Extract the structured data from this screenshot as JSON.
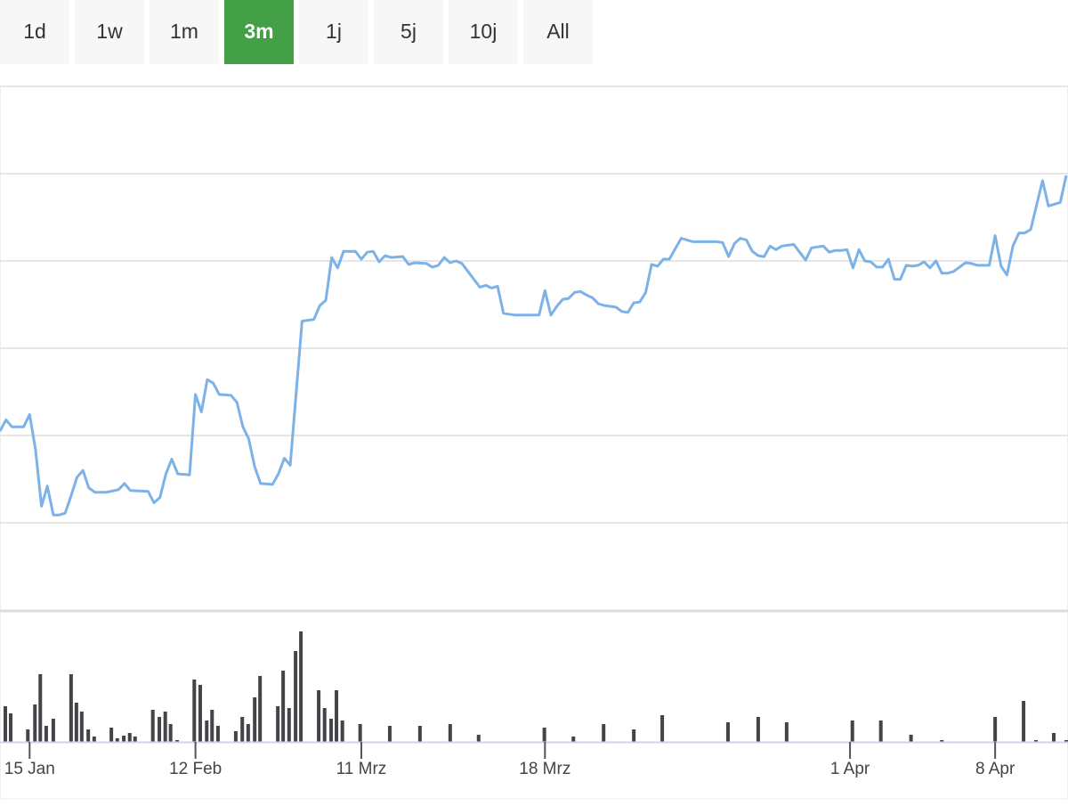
{
  "buttons": {
    "labels": [
      "1d",
      "1w",
      "1m",
      "3m",
      "1j",
      "5j",
      "10j",
      "All"
    ],
    "active": 3
  },
  "chart_data": {
    "type": "line",
    "color": "#7cb2e8",
    "xlim": [
      0,
      180
    ],
    "ylim": [
      0,
      6
    ],
    "yticks": [
      1,
      2,
      3,
      4,
      5,
      6
    ],
    "grid": true,
    "xticks": [
      {
        "value": 5,
        "label": "15 Jan"
      },
      {
        "value": 33,
        "label": "12 Feb"
      },
      {
        "value": 61,
        "label": "11 Mrz"
      },
      {
        "value": 92,
        "label": "18 Mrz"
      },
      {
        "value": 143.5,
        "label": "1 Apr"
      },
      {
        "value": 168,
        "label": "8 Apr"
      }
    ],
    "x": [
      0,
      1,
      2,
      4,
      5,
      6,
      7,
      8,
      9,
      10,
      11,
      12,
      13,
      14,
      15,
      16,
      18,
      20,
      21,
      22,
      25,
      26,
      27,
      28,
      29,
      30,
      32,
      33,
      34,
      35,
      36,
      37,
      39,
      40,
      41,
      42,
      43,
      44,
      46,
      47,
      48,
      49,
      51,
      53,
      54,
      55,
      56,
      57,
      58,
      60,
      61,
      62,
      63,
      64,
      65,
      66,
      68,
      69,
      70,
      72,
      73,
      74,
      75,
      76,
      77,
      78,
      79,
      81,
      82,
      83,
      84,
      85,
      87,
      91,
      92,
      93,
      94,
      95,
      96,
      97,
      98,
      99,
      100,
      101,
      102,
      104,
      105,
      106,
      107,
      108,
      109,
      110,
      111,
      112,
      113,
      114,
      115,
      116,
      117,
      121,
      122,
      123,
      124,
      125,
      126,
      127,
      128,
      129,
      130,
      131,
      132,
      134,
      135,
      136,
      137,
      139,
      140,
      141,
      142,
      143,
      144,
      145,
      146,
      147,
      148,
      149,
      150,
      151,
      152,
      153,
      154,
      155,
      156,
      157,
      158,
      159,
      160,
      161,
      163,
      164,
      165,
      167,
      168,
      169,
      170,
      171,
      172,
      173,
      174,
      175,
      176,
      177,
      179,
      180
    ],
    "values": [
      2.05,
      2.18,
      2.1,
      2.1,
      2.24,
      1.84,
      1.19,
      1.42,
      1.09,
      1.09,
      1.11,
      1.31,
      1.52,
      1.6,
      1.4,
      1.35,
      1.35,
      1.38,
      1.45,
      1.37,
      1.36,
      1.23,
      1.29,
      1.56,
      1.73,
      1.56,
      1.55,
      2.47,
      2.27,
      2.64,
      2.6,
      2.47,
      2.46,
      2.38,
      2.1,
      1.96,
      1.64,
      1.45,
      1.44,
      1.56,
      1.74,
      1.66,
      3.31,
      3.33,
      3.49,
      3.55,
      4.04,
      3.92,
      4.11,
      4.11,
      4.02,
      4.1,
      4.11,
      3.99,
      4.06,
      4.04,
      4.05,
      3.96,
      3.98,
      3.97,
      3.93,
      3.95,
      4.04,
      3.98,
      4.0,
      3.97,
      3.88,
      3.7,
      3.72,
      3.69,
      3.71,
      3.4,
      3.38,
      3.38,
      3.66,
      3.38,
      3.48,
      3.56,
      3.57,
      3.64,
      3.65,
      3.61,
      3.58,
      3.51,
      3.49,
      3.47,
      3.42,
      3.41,
      3.52,
      3.53,
      3.64,
      3.96,
      3.94,
      4.02,
      4.02,
      4.14,
      4.26,
      4.24,
      4.22,
      4.22,
      4.21,
      4.05,
      4.2,
      4.26,
      4.24,
      4.11,
      4.06,
      4.05,
      4.17,
      4.13,
      4.17,
      4.19,
      4.1,
      4.01,
      4.15,
      4.17,
      4.1,
      4.12,
      4.12,
      4.13,
      3.92,
      4.13,
      4.0,
      3.99,
      3.93,
      3.93,
      4.02,
      3.79,
      3.79,
      3.95,
      3.94,
      3.95,
      3.99,
      3.92,
      4.0,
      3.86,
      3.86,
      3.88,
      3.98,
      3.97,
      3.95,
      3.95,
      4.29,
      3.94,
      3.84,
      4.17,
      4.32,
      4.32,
      4.36,
      4.64,
      4.92,
      4.63,
      4.67,
      4.98
    ],
    "volume": {
      "color": "#434348",
      "ylim": [
        0,
        130
      ],
      "x": [
        0.9,
        1.8,
        4.7,
        5.9,
        6.8,
        7.8,
        9.0,
        12.0,
        12.9,
        13.8,
        14.9,
        15.9,
        18.8,
        19.8,
        20.9,
        21.9,
        22.8,
        25.8,
        26.9,
        27.9,
        28.8,
        29.9,
        32.8,
        33.8,
        34.9,
        35.8,
        36.8,
        39.8,
        40.9,
        41.9,
        43.0,
        43.9,
        46.9,
        47.8,
        48.8,
        49.9,
        50.8,
        53.8,
        54.8,
        55.9,
        56.8,
        57.8,
        60.8,
        65.8,
        70.9,
        76.0,
        80.8,
        91.9,
        96.8,
        101.9,
        107.0,
        111.8,
        122.9,
        128.0,
        132.8,
        143.9,
        148.7,
        153.8,
        159.0,
        168.0,
        172.8,
        174.9,
        177.9,
        180
      ],
      "values": [
        40,
        32,
        14,
        42,
        76,
        18,
        26,
        76,
        44,
        34,
        14,
        6,
        16,
        4,
        7,
        10,
        6,
        36,
        28,
        34,
        20,
        2,
        70,
        64,
        24,
        36,
        18,
        12,
        28,
        20,
        50,
        74,
        40,
        80,
        38,
        102,
        124,
        58,
        38,
        26,
        58,
        24,
        20,
        18,
        18,
        20,
        8,
        16,
        6,
        20,
        14,
        30,
        22,
        28,
        22,
        24,
        24,
        8,
        2,
        28,
        46,
        2,
        10,
        2
      ]
    }
  }
}
